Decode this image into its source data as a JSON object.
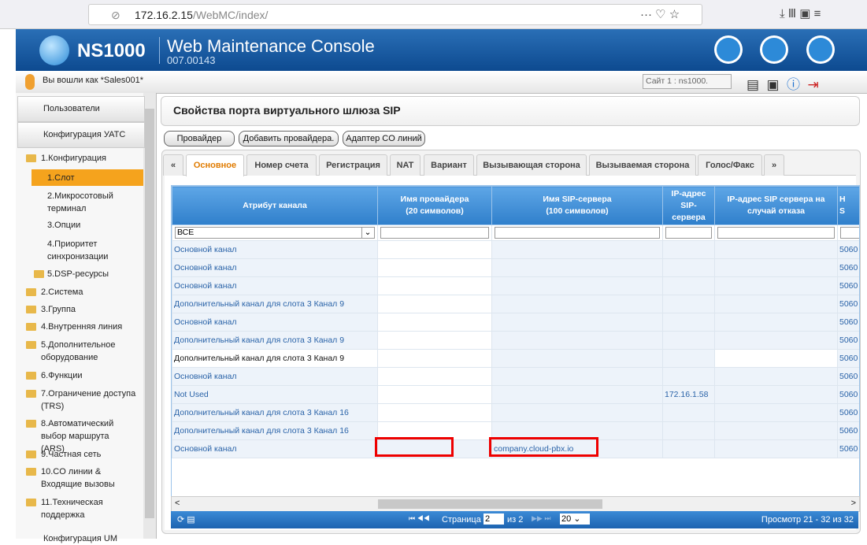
{
  "browser": {
    "url_host": "172.16.2.15",
    "url_path": "/WebMC/index/"
  },
  "header": {
    "product": "NS1000",
    "title": "Web Maintenance Console",
    "version": "007.00143"
  },
  "user_bar": {
    "login": "Вы вошли как *Sales001*",
    "site": "Сайт 1 : ns1000."
  },
  "sidebar": {
    "items": [
      "Пользователи",
      "Конфигурация УАТС",
      "1.Конфигурация",
      "1.Слот",
      "2.Микросотовый терминал",
      "3.Опции",
      "4.Приоритет синхронизации",
      "5.DSP-ресурсы",
      "2.Система",
      "3.Группа",
      "4.Внутренняя линия",
      "5.Дополнительное оборудование",
      "6.Функции",
      "7.Ограничение доступа (TRS)",
      "8.Автоматический выбор маршрута (ARS)",
      "9.Частная сеть",
      "10.CO линии & Входящие вызовы",
      "11.Техническая поддержка",
      "Конфигурация UM"
    ]
  },
  "main": {
    "title": "Свойства порта виртуального шлюза SIP",
    "buttons": [
      "Провайдер",
      "Добавить провайдера.",
      "Адаптер CO линий"
    ],
    "tabs": [
      "«",
      "Основное",
      "Номер счета",
      "Регистрация",
      "NAT",
      "Вариант",
      "Вызывающая сторона",
      "Вызываемая сторона",
      "Голос/Факс",
      "»"
    ],
    "table": {
      "headers": [
        [
          "Атрибут канала"
        ],
        [
          "Имя провайдера",
          "(20 символов)"
        ],
        [
          "Имя SIP-сервера",
          "(100 символов)"
        ],
        [
          "IP-адрес",
          "SIP-",
          "сервера"
        ],
        [
          "IP-адрес SIP сервера на",
          "случай отказа"
        ],
        [
          "Н",
          "S"
        ]
      ],
      "filter": "ВСЕ",
      "rows": [
        [
          "Основной канал",
          null,
          null,
          null,
          null,
          "5060"
        ],
        [
          "Основной канал",
          null,
          null,
          null,
          null,
          "5060"
        ],
        [
          "Основной канал",
          null,
          null,
          null,
          null,
          "5060"
        ],
        [
          "Дополнительный канал для слота 3 Канал 9",
          null,
          null,
          null,
          null,
          "5060"
        ],
        [
          "Основной канал",
          null,
          null,
          null,
          null,
          "5060"
        ],
        [
          "Дополнительный канал для слота 3 Канал 9",
          null,
          null,
          null,
          null,
          "5060"
        ],
        [
          "Дополнительный канал для слота 3 Канал 9",
          null,
          null,
          null,
          null,
          "5060"
        ],
        [
          "Основной канал",
          null,
          null,
          null,
          null,
          "5060"
        ],
        [
          "Not Used",
          null,
          null,
          "172.16.1.58",
          null,
          "5060"
        ],
        [
          "Дополнительный канал для слота 3 Канал 16",
          null,
          null,
          null,
          null,
          "5060"
        ],
        [
          "Дополнительный канал для слота 3 Канал 16",
          null,
          null,
          null,
          null,
          "5060"
        ],
        [
          "Основной канал",
          null,
          "company.cloud-pbx.io",
          null,
          null,
          "5060"
        ]
      ]
    },
    "pager": {
      "page_label": "Страница",
      "page": "2",
      "of": "из 2",
      "page_size": "20",
      "summary": "Просмотр 21 - 32 из 32"
    }
  }
}
